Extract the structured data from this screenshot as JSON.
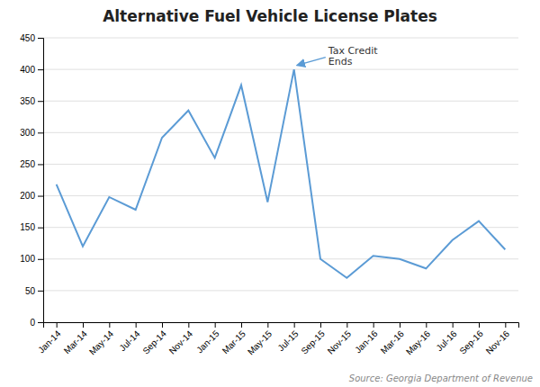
{
  "chart_data": {
    "type": "line",
    "title": "Alternative Fuel Vehicle License Plates",
    "source": "Source: Georgia Department of Revenue",
    "categories": [
      "Jan-14",
      "Mar-14",
      "May-14",
      "Jul-14",
      "Sep-14",
      "Nov-14",
      "Jan-15",
      "Mar-15",
      "May-15",
      "Jul-15",
      "Sep-15",
      "Nov-15",
      "Jan-16",
      "Mar-16",
      "May-16",
      "Jul-16",
      "Sep-16",
      "Nov-16"
    ],
    "values": [
      218,
      120,
      198,
      178,
      292,
      335,
      260,
      375,
      190,
      400,
      100,
      70,
      105,
      100,
      85,
      130,
      160,
      115
    ],
    "color": "#5b9bd5",
    "ylim": [
      0,
      450
    ],
    "yticks": [
      0,
      50,
      100,
      150,
      200,
      250,
      300,
      350,
      400,
      450
    ],
    "grid": true,
    "annotations": [
      {
        "text": "Tax Credit\nEnds",
        "x": "Jul-15",
        "y": 405
      }
    ]
  }
}
